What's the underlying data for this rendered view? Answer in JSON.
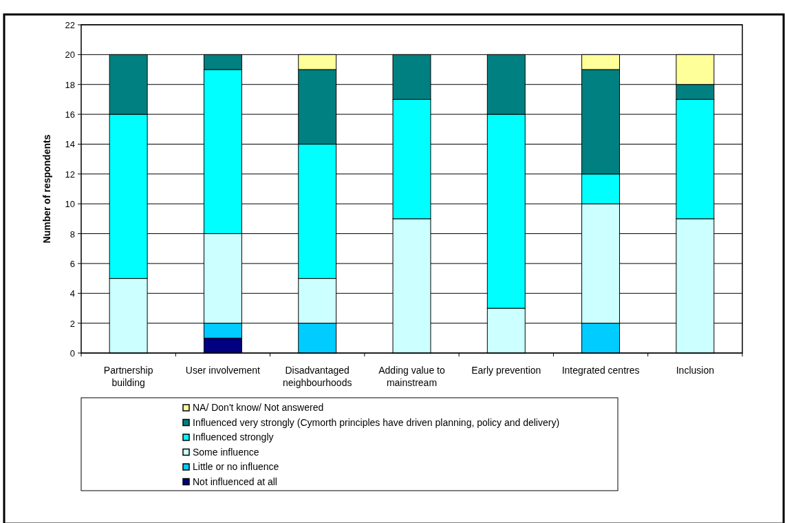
{
  "chart_data": {
    "type": "bar",
    "stacked": true,
    "ylabel": "Number of respondents",
    "categories": [
      "Partnership building",
      "User involvement",
      "Disadvantaged neighbourhoods",
      "Adding value to mainstream",
      "Early prevention",
      "Integrated centres",
      "Inclusion"
    ],
    "series": [
      {
        "name": "Not influenced at all",
        "color": "#000080",
        "values": [
          0,
          1,
          0,
          0,
          0,
          0,
          0
        ]
      },
      {
        "name": "Little or no influence",
        "color": "#00ccff",
        "values": [
          0,
          1,
          2,
          0,
          0,
          2,
          0
        ]
      },
      {
        "name": "Some influence",
        "color": "#ccffff",
        "values": [
          5,
          6,
          3,
          9,
          3,
          8,
          9
        ]
      },
      {
        "name": "Influenced strongly",
        "color": "#00ffff",
        "values": [
          11,
          11,
          9,
          8,
          13,
          2,
          8
        ]
      },
      {
        "name": "Influenced very strongly (Cymorth principles have driven planning, policy and delivery)",
        "color": "#008080",
        "values": [
          4,
          1,
          5,
          3,
          4,
          7,
          1
        ]
      },
      {
        "name": "NA/ Don't know/ Not answered",
        "color": "#ffff99",
        "values": [
          0,
          0,
          1,
          0,
          0,
          1,
          2
        ]
      }
    ],
    "ylim": [
      0,
      22
    ],
    "yticks": [
      0,
      2,
      4,
      6,
      8,
      10,
      12,
      14,
      16,
      18,
      20,
      22
    ],
    "grid": "y",
    "legend": "bottom"
  }
}
